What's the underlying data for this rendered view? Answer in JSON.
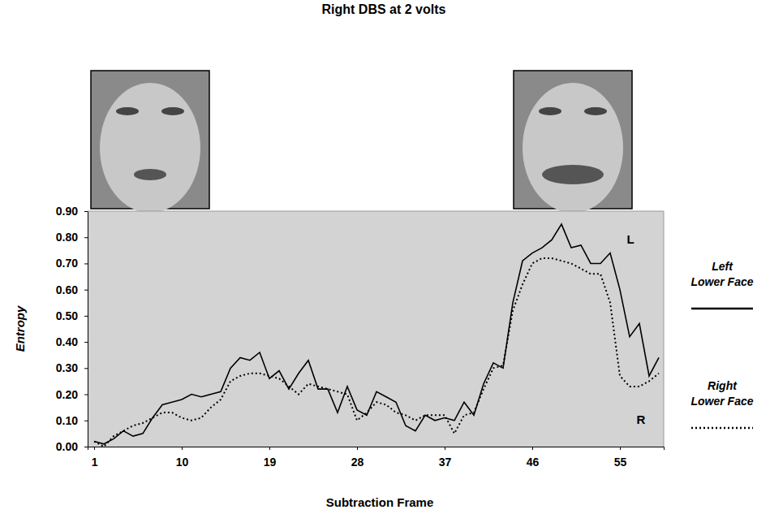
{
  "chart_data": {
    "type": "line",
    "title": "Right DBS at 2 volts",
    "x_label": "Subtraction Frame",
    "y_label": "Entropy",
    "x": [
      1,
      2,
      3,
      4,
      5,
      6,
      7,
      8,
      9,
      10,
      11,
      12,
      13,
      14,
      15,
      16,
      17,
      18,
      19,
      20,
      21,
      22,
      23,
      24,
      25,
      26,
      27,
      28,
      29,
      30,
      31,
      32,
      33,
      34,
      35,
      36,
      37,
      38,
      39,
      40,
      41,
      42,
      43,
      44,
      45,
      46,
      47,
      48,
      49,
      50,
      51,
      52,
      53,
      54,
      55,
      56,
      57,
      58,
      59
    ],
    "series": [
      {
        "name": "Left Lower Face",
        "color": "#000000",
        "line_style": "solid",
        "values": [
          0.02,
          0.01,
          0.03,
          0.06,
          0.04,
          0.05,
          0.11,
          0.16,
          0.17,
          0.18,
          0.2,
          0.19,
          0.2,
          0.21,
          0.3,
          0.34,
          0.33,
          0.36,
          0.26,
          0.29,
          0.22,
          0.28,
          0.33,
          0.22,
          0.22,
          0.13,
          0.23,
          0.14,
          0.12,
          0.21,
          0.19,
          0.17,
          0.08,
          0.06,
          0.12,
          0.1,
          0.11,
          0.1,
          0.17,
          0.12,
          0.24,
          0.32,
          0.3,
          0.55,
          0.71,
          0.74,
          0.76,
          0.79,
          0.85,
          0.76,
          0.77,
          0.7,
          0.7,
          0.74,
          0.6,
          0.42,
          0.47,
          0.27,
          0.34
        ]
      },
      {
        "name": "Right Lower Face",
        "color": "#000000",
        "line_style": "dotted",
        "values": [
          0.02,
          0.0,
          0.04,
          0.06,
          0.08,
          0.09,
          0.11,
          0.13,
          0.13,
          0.11,
          0.1,
          0.11,
          0.15,
          0.18,
          0.25,
          0.27,
          0.28,
          0.28,
          0.27,
          0.26,
          0.23,
          0.2,
          0.24,
          0.23,
          0.22,
          0.21,
          0.2,
          0.1,
          0.13,
          0.17,
          0.16,
          0.13,
          0.12,
          0.1,
          0.12,
          0.12,
          0.12,
          0.05,
          0.12,
          0.13,
          0.22,
          0.3,
          0.31,
          0.52,
          0.62,
          0.7,
          0.72,
          0.72,
          0.71,
          0.7,
          0.68,
          0.66,
          0.66,
          0.55,
          0.27,
          0.23,
          0.23,
          0.25,
          0.28
        ]
      }
    ],
    "annotations": [
      "L",
      "R"
    ],
    "xlim": [
      0.33,
      59.5
    ],
    "xticks": [
      1,
      10,
      19,
      28,
      37,
      46,
      55
    ],
    "ylim": [
      0,
      0.9
    ],
    "yticks": [
      {
        "value": 0,
        "label": "0.00"
      },
      {
        "value": 0.1,
        "label": "0.10"
      },
      {
        "value": 0.2,
        "label": "0.20"
      },
      {
        "value": 0.3,
        "label": "0.30"
      },
      {
        "value": 0.4,
        "label": "0.40"
      },
      {
        "value": 0.5,
        "label": "0.50"
      },
      {
        "value": 0.6,
        "label": "0.60"
      },
      {
        "value": 0.7,
        "label": "0.70"
      },
      {
        "value": 0.8,
        "label": "0.80"
      },
      {
        "value": 0.9,
        "label": "0.90"
      }
    ],
    "grid": false,
    "legend": "right"
  }
}
